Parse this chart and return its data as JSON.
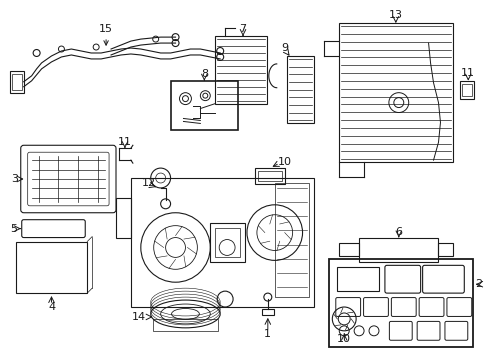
{
  "bg_color": "#ffffff",
  "line_color": "#1a1a1a",
  "figsize": [
    4.9,
    3.6
  ],
  "dpi": 100,
  "label_fs": 8
}
